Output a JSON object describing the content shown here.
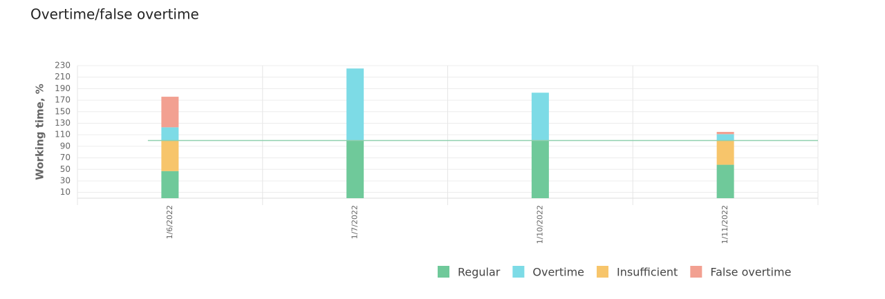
{
  "chart_data": {
    "type": "stacked_bar",
    "title": "Overtime/false overtime",
    "y_label": "Working time, %",
    "categories": [
      "1/6/2022",
      "1/7/2022",
      "1/10/2022",
      "1/11/2022"
    ],
    "series": [
      {
        "name": "Regular",
        "color": "#6fc99a",
        "values": [
          47,
          100,
          100,
          58
        ]
      },
      {
        "name": "Insufficient",
        "color": "#f7c56b",
        "values": [
          53,
          0,
          0,
          42
        ]
      },
      {
        "name": "Overtime",
        "color": "#7ddbe6",
        "values": [
          23,
          125,
          83,
          11
        ]
      },
      {
        "name": "False overtime",
        "color": "#f2a091",
        "values": [
          53,
          0,
          0,
          4
        ]
      }
    ],
    "legend_order": [
      0,
      2,
      1,
      3
    ],
    "reference_line": 100,
    "reference_color": "#8fd0ae",
    "ylim": [
      0,
      230
    ],
    "yticks": [
      10,
      30,
      50,
      70,
      90,
      110,
      130,
      150,
      170,
      190,
      210,
      230
    ],
    "grid": true
  }
}
